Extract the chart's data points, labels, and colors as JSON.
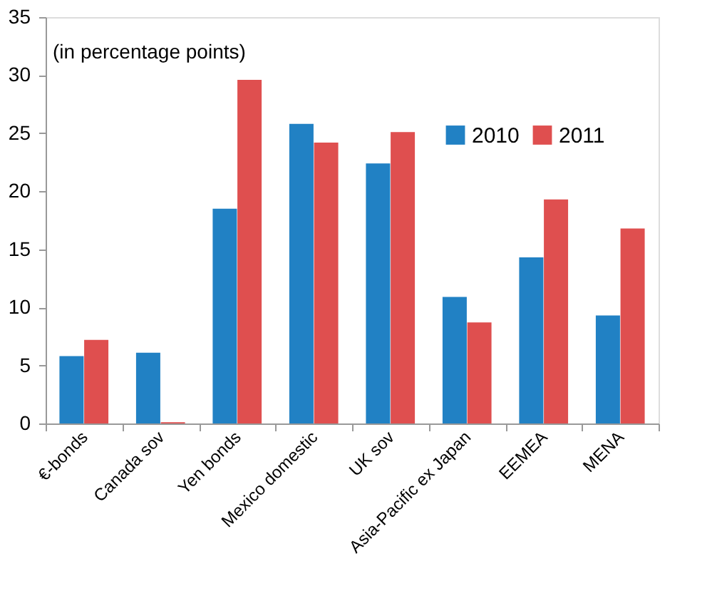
{
  "chart_data": {
    "type": "bar",
    "categories": [
      "€-bonds",
      "Canada sov",
      "Yen bonds",
      "Mexico domestic",
      "UK sov",
      "Asia-Pacific ex Japan",
      "EEMEA",
      "MENA"
    ],
    "series": [
      {
        "name": "2010",
        "color": "#2181c4",
        "values": [
          5.8,
          6.1,
          18.5,
          25.8,
          22.4,
          10.9,
          14.3,
          9.3
        ]
      },
      {
        "name": "2011",
        "color": "#df4f4f",
        "values": [
          7.2,
          0.1,
          29.6,
          24.2,
          25.1,
          8.7,
          19.3,
          16.8
        ]
      }
    ],
    "ylim": [
      0,
      35
    ],
    "yticks": [
      0,
      5,
      10,
      15,
      20,
      25,
      30,
      35
    ],
    "annotations": [
      "(in percentage points)"
    ],
    "grid": false,
    "legend": "top right"
  }
}
